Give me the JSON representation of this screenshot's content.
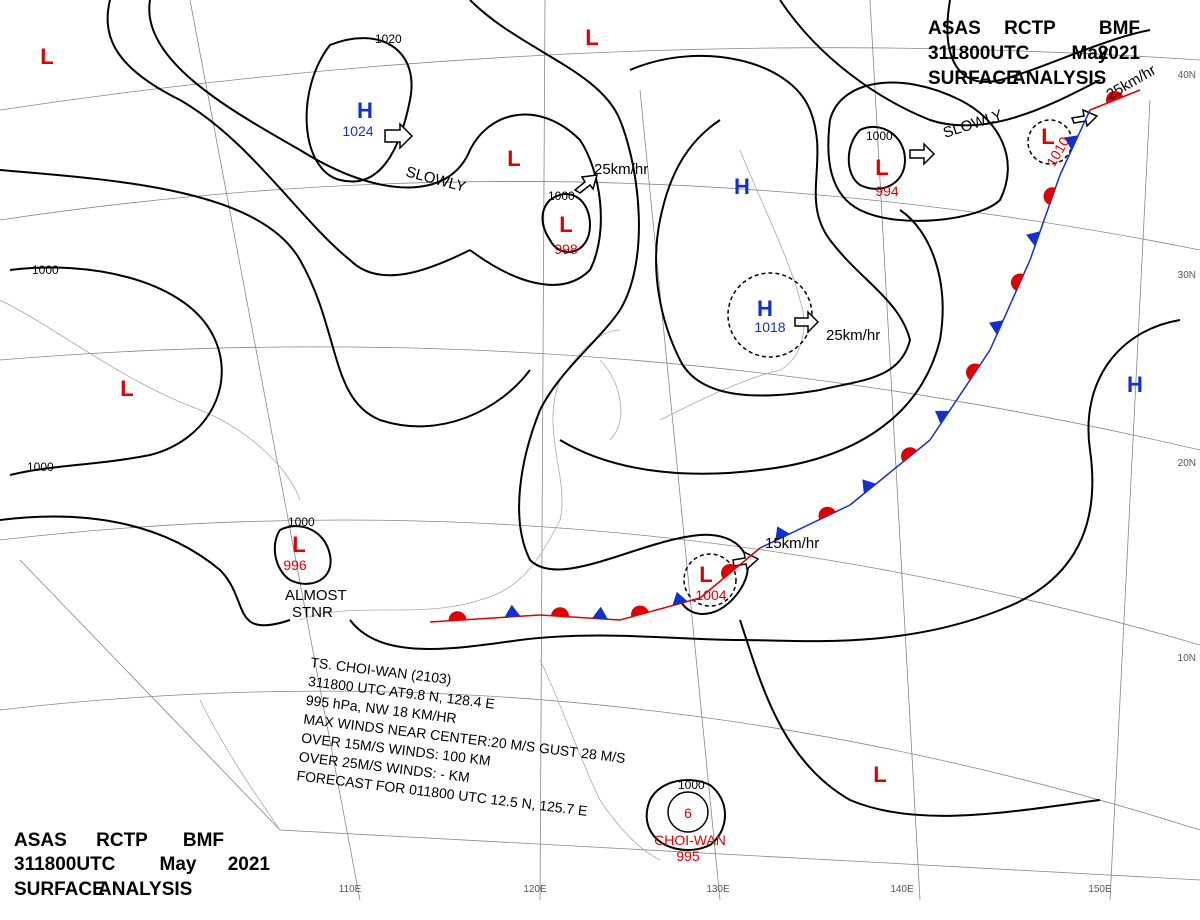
{
  "header": {
    "lines": [
      [
        "ASAS",
        "RCTP",
        "BMF"
      ],
      [
        "311800UTC",
        "May",
        "2021"
      ],
      [
        "SURFACE",
        "ANALYSIS"
      ]
    ]
  },
  "systems": [
    {
      "type": "H",
      "pressure": "1024"
    },
    {
      "type": "L"
    },
    {
      "type": "L",
      "pressure": "998"
    },
    {
      "type": "H",
      "pressure": "1018"
    },
    {
      "type": "L",
      "pressure": "994"
    },
    {
      "type": "L",
      "pressure": "1010"
    },
    {
      "type": "H"
    },
    {
      "type": "H"
    },
    {
      "type": "L"
    },
    {
      "type": "L"
    },
    {
      "type": "L"
    },
    {
      "type": "L"
    },
    {
      "type": "L",
      "pressure": "996"
    },
    {
      "type": "L",
      "pressure": "1004"
    }
  ],
  "typhoon": {
    "name": "CHOI-WAN",
    "pressure": "995"
  },
  "isobar_labels": [
    "1020",
    "1000",
    "1000",
    "1000",
    "1000",
    "1000",
    "1000"
  ],
  "motions": [
    "SLOWLY",
    "25km/hr",
    "25km/hr",
    "SLOWLY",
    "25km/hr",
    "15km/hr",
    "ALMOST",
    "STNR"
  ],
  "typhoon_bulletin": [
    "TS. CHOI-WAN (2103)",
    "311800 UTC AT9.8 N, 128.4 E",
    "995 hPa, NW 18 KM/HR",
    "MAX WINDS NEAR CENTER:20 M/S GUST 28 M/S",
    "OVER 15M/S WINDS: 100 KM",
    "OVER 25M/S WINDS: - KM",
    "FORECAST FOR 011800 UTC 12.5 N, 125.7 E"
  ],
  "longitudes": [
    "110E",
    "120E",
    "130E",
    "140E",
    "150E"
  ],
  "latitudes": [
    "40N",
    "30N",
    "20N",
    "10N"
  ]
}
